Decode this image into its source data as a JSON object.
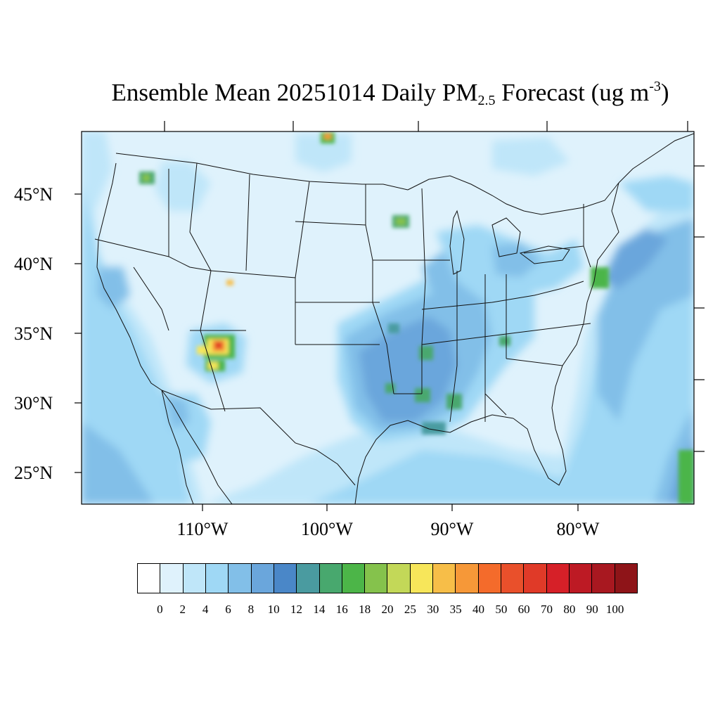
{
  "title": {
    "prefix": "Ensemble Mean 20251014 Daily PM",
    "sub": "2.5",
    "mid": " Forecast (ug m",
    "sup": "-3",
    "suffix": ")"
  },
  "lat_labels": [
    "45°N",
    "40°N",
    "35°N",
    "30°N",
    "25°N"
  ],
  "lon_labels": [
    "110°W",
    "100°W",
    "90°W",
    "80°W"
  ],
  "colorbar": {
    "tick_labels": [
      "0",
      "2",
      "4",
      "6",
      "8",
      "10",
      "12",
      "14",
      "16",
      "18",
      "20",
      "25",
      "30",
      "35",
      "40",
      "50",
      "60",
      "70",
      "80",
      "90",
      "100"
    ],
    "colors": [
      "#ffffff",
      "#dff2fc",
      "#bfe6f9",
      "#9fd8f5",
      "#82bfe8",
      "#6aa6dc",
      "#4a87c8",
      "#4a9ba0",
      "#48a86e",
      "#4cb548",
      "#85c24c",
      "#c3d858",
      "#f7e65a",
      "#f7be48",
      "#f69838",
      "#f46b2b",
      "#e9502b",
      "#e03a28",
      "#d62028",
      "#bd1a24",
      "#a81820",
      "#8e1418"
    ]
  },
  "hotspots_value_ug_m3": [
    {
      "region": "central-arizona",
      "value": 60
    },
    {
      "region": "south-arizona",
      "value": 30
    },
    {
      "region": "manitoba-border",
      "value": 40
    },
    {
      "region": "minnesota",
      "value": 20
    },
    {
      "region": "gulf-of-mexico-east",
      "value": 16
    }
  ]
}
